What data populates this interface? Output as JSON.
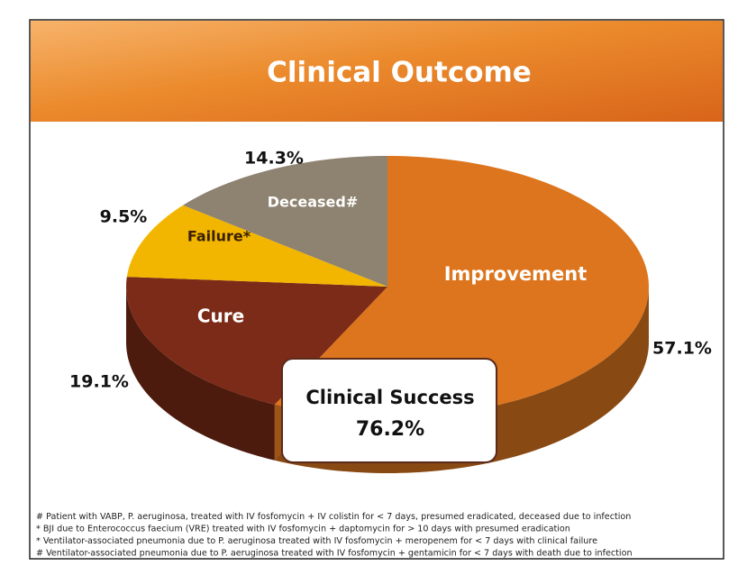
{
  "chart_data": {
    "type": "pie",
    "title": "Clinical Outcome",
    "categories": [
      "Improvement",
      "Cure",
      "Failure*",
      "Deceased#"
    ],
    "values": [
      57.1,
      19.1,
      9.5,
      14.3
    ],
    "value_labels": [
      "57.1%",
      "19.1%",
      "9.5%",
      "14.3%"
    ],
    "colors": [
      "#dc751e",
      "#7b2b17",
      "#f3b600",
      "#8e8270"
    ],
    "annotation": {
      "text": "Clinical Success",
      "value_label": "76.2%"
    },
    "footnotes": [
      "# Patient with VABP, P. aeruginosa, treated with IV fosfomycin + IV colistin for < 7 days, presumed eradicated, deceased due to infection",
      "* BJI due to Enterococcus faecium (VRE) treated with IV fosfomycin + daptomycin for > 10 days with presumed eradication",
      "* Ventilator-associated pneumonia due to P. aeruginosa treated with IV fosfomycin + meropenem for < 7 days with clinical failure",
      "# Ventilator-associated pneumonia due to P. aeruginosa treated with IV fosfomycin + gentamicin for < 7 days with death due to infection"
    ]
  }
}
